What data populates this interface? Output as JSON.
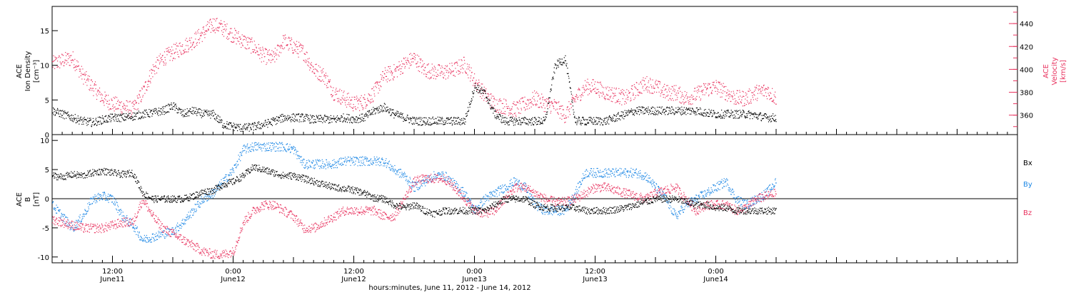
{
  "colors": {
    "black": "#000000",
    "pink": "#e8335f",
    "blue": "#1e88e5"
  },
  "chart_data": [
    {
      "type": "scatter",
      "panel": "top",
      "xlabel": "hours:minutes, June 11, 2012 - June 14, 2012",
      "x_range_hours": [
        0,
        96
      ],
      "x_ticks": [
        {
          "hour": 6,
          "label": "12:00",
          "sub": "June11"
        },
        {
          "hour": 18,
          "label": "0:00",
          "sub": "June12"
        },
        {
          "hour": 30,
          "label": "12:00",
          "sub": "June12"
        },
        {
          "hour": 42,
          "label": "0:00",
          "sub": "June13"
        },
        {
          "hour": 54,
          "label": "12:00",
          "sub": "June13"
        },
        {
          "hour": 66,
          "label": "0:00",
          "sub": "June14"
        }
      ],
      "left_axis": {
        "label_lines": [
          "ACE",
          "Ion Density",
          "[cm⁻³]"
        ],
        "ylim": [
          0,
          18.5
        ],
        "ticks": [
          0,
          5,
          10,
          15
        ]
      },
      "right_axis": {
        "label_lines": [
          "ACE",
          "Velocity",
          "[km/s]"
        ],
        "ylim": [
          343,
          455
        ],
        "ticks": [
          360,
          380,
          400,
          420,
          440
        ]
      },
      "series": [
        {
          "axis": "left",
          "color": "#000000",
          "x": [
            0,
            1,
            2,
            3,
            4,
            5,
            6,
            7,
            8,
            9,
            10,
            11,
            12,
            13,
            14,
            15,
            16,
            17,
            18,
            19,
            20,
            21,
            22,
            23,
            24,
            25,
            26,
            27,
            28,
            29,
            30,
            31,
            32,
            33,
            34,
            35,
            36,
            37,
            38,
            39,
            40,
            41,
            42,
            43,
            44,
            45,
            46,
            47,
            48,
            49,
            50,
            51,
            52,
            53,
            54,
            55,
            56,
            57,
            58,
            59,
            60,
            61,
            62,
            63,
            64,
            65,
            66,
            67,
            68,
            69,
            70,
            71,
            72
          ],
          "y": [
            3.5,
            3,
            2.5,
            2,
            1.8,
            2.2,
            2.5,
            2.5,
            2.7,
            3,
            3.2,
            3.5,
            4.2,
            3,
            3.5,
            3,
            3,
            1.5,
            1.2,
            1,
            1.2,
            1.5,
            2,
            2.5,
            2.5,
            2.5,
            2.2,
            2.3,
            2.2,
            2.5,
            2.3,
            2.5,
            3.5,
            4,
            3,
            2.5,
            2,
            2,
            2,
            2,
            2,
            2,
            7,
            6,
            3,
            2,
            2,
            2,
            2,
            2,
            10,
            11,
            2,
            2,
            2,
            2,
            2.5,
            3,
            3.5,
            3.5,
            3.5,
            3.5,
            3.5,
            3.5,
            3.5,
            3.2,
            3,
            3,
            3,
            3,
            2.8,
            2.5,
            2.5
          ]
        },
        {
          "axis": "right",
          "color": "#e8335f",
          "x": [
            0,
            1,
            2,
            3,
            4,
            5,
            6,
            7,
            8,
            9,
            10,
            11,
            12,
            13,
            14,
            15,
            16,
            17,
            18,
            19,
            20,
            21,
            22,
            23,
            24,
            25,
            26,
            27,
            28,
            29,
            30,
            31,
            32,
            33,
            34,
            35,
            36,
            37,
            38,
            39,
            40,
            41,
            42,
            43,
            44,
            45,
            46,
            47,
            48,
            49,
            50,
            51,
            52,
            53,
            54,
            55,
            56,
            57,
            58,
            59,
            60,
            61,
            62,
            63,
            64,
            65,
            66,
            67,
            68,
            69,
            70,
            71,
            72
          ],
          "y": [
            405,
            408,
            410,
            395,
            385,
            375,
            370,
            368,
            365,
            380,
            400,
            410,
            415,
            420,
            425,
            432,
            440,
            436,
            430,
            425,
            420,
            412,
            410,
            425,
            420,
            415,
            400,
            395,
            380,
            375,
            370,
            372,
            380,
            395,
            398,
            405,
            410,
            400,
            398,
            398,
            400,
            405,
            390,
            378,
            370,
            368,
            365,
            370,
            375,
            370,
            368,
            360,
            375,
            385,
            385,
            380,
            378,
            375,
            382,
            388,
            385,
            380,
            380,
            375,
            378,
            383,
            385,
            380,
            375,
            375,
            380,
            382,
            375
          ]
        }
      ]
    },
    {
      "type": "scatter",
      "panel": "bottom",
      "x_range_hours": [
        0,
        96
      ],
      "left_axis": {
        "label_lines": [
          "ACE",
          "B",
          "[nT]"
        ],
        "ylim": [
          -11,
          11
        ],
        "ticks": [
          -10,
          -5,
          0,
          5,
          10
        ]
      },
      "zero_line": true,
      "legend": [
        "Bx",
        "By",
        "Bz"
      ],
      "series": [
        {
          "name": "Bx",
          "color": "#000000",
          "x": [
            0,
            1,
            2,
            3,
            4,
            5,
            6,
            7,
            8,
            9,
            10,
            11,
            12,
            13,
            14,
            15,
            16,
            17,
            18,
            19,
            20,
            21,
            22,
            23,
            24,
            25,
            26,
            27,
            28,
            29,
            30,
            31,
            32,
            33,
            34,
            35,
            36,
            37,
            38,
            39,
            40,
            41,
            42,
            43,
            44,
            45,
            46,
            47,
            48,
            49,
            50,
            51,
            52,
            53,
            54,
            55,
            56,
            57,
            58,
            59,
            60,
            61,
            62,
            63,
            64,
            65,
            66,
            67,
            68,
            69,
            70,
            71,
            72
          ],
          "y": [
            4,
            3.8,
            4.2,
            4,
            4.5,
            4.8,
            4.5,
            4.2,
            4.5,
            1,
            0,
            0,
            0,
            0,
            0.5,
            1.2,
            1.5,
            2.5,
            3,
            4,
            5.5,
            5,
            4.5,
            4,
            4,
            3.5,
            3,
            2.5,
            2,
            1.8,
            1.5,
            1,
            0.2,
            0,
            -1,
            -1.5,
            -1,
            -2,
            -2.5,
            -2,
            -2,
            -2,
            -2,
            -2,
            -1,
            0,
            0,
            0,
            -1,
            -1.5,
            -1.5,
            -1.5,
            -1.5,
            -2,
            -2,
            -2,
            -1.8,
            -1.5,
            -1,
            -0.5,
            0,
            0,
            0,
            -0.5,
            -1,
            -1,
            -1.5,
            -1.5,
            -2,
            -2,
            -2,
            -2,
            -2
          ]
        },
        {
          "name": "By",
          "color": "#1e88e5",
          "x": [
            0,
            1,
            2,
            3,
            4,
            5,
            6,
            7,
            8,
            9,
            10,
            11,
            12,
            13,
            14,
            15,
            16,
            17,
            18,
            19,
            20,
            21,
            22,
            23,
            24,
            25,
            26,
            27,
            28,
            29,
            30,
            31,
            32,
            33,
            34,
            35,
            36,
            37,
            38,
            39,
            40,
            41,
            42,
            43,
            44,
            45,
            46,
            47,
            48,
            49,
            50,
            51,
            52,
            53,
            54,
            55,
            56,
            57,
            58,
            59,
            60,
            61,
            62,
            63,
            64,
            65,
            66,
            67,
            68,
            69,
            70,
            71,
            72
          ],
          "y": [
            -1,
            -3,
            -5,
            -3,
            0,
            0.5,
            0,
            -3,
            -4.5,
            -7,
            -6.5,
            -6,
            -5.5,
            -4,
            -2,
            0,
            1,
            3,
            5,
            8.5,
            9,
            9,
            9,
            9,
            8.5,
            6,
            6,
            6,
            6,
            6.5,
            6.5,
            6.5,
            6.5,
            6.5,
            5,
            4,
            2,
            3,
            4,
            4,
            2.5,
            1,
            -2,
            0,
            1,
            2,
            3,
            2,
            -1,
            -2,
            -2,
            -2,
            1,
            4.5,
            4.5,
            4.5,
            4.5,
            4.5,
            4.5,
            4,
            2,
            0,
            -3,
            -1,
            0,
            1,
            2,
            3,
            0,
            -1,
            0,
            1,
            3
          ]
        },
        {
          "name": "Bz",
          "color": "#e8335f",
          "x": [
            0,
            1,
            2,
            3,
            4,
            5,
            6,
            7,
            8,
            9,
            10,
            11,
            12,
            13,
            14,
            15,
            16,
            17,
            18,
            19,
            20,
            21,
            22,
            23,
            24,
            25,
            26,
            27,
            28,
            29,
            30,
            31,
            32,
            33,
            34,
            35,
            36,
            37,
            38,
            39,
            40,
            41,
            42,
            43,
            44,
            45,
            46,
            47,
            48,
            49,
            50,
            51,
            52,
            53,
            54,
            55,
            56,
            57,
            58,
            59,
            60,
            61,
            62,
            63,
            64,
            65,
            66,
            67,
            68,
            69,
            70,
            71,
            72
          ],
          "y": [
            -3.5,
            -4,
            -4.5,
            -5,
            -5,
            -5,
            -4.5,
            -4,
            -4,
            0,
            -3,
            -5,
            -6,
            -7,
            -8,
            -9,
            -9.5,
            -9.5,
            -9,
            -4,
            -2,
            -1,
            -1,
            -2,
            -3,
            -5,
            -5,
            -4,
            -3,
            -2,
            -2,
            -2,
            -2,
            -3,
            -3,
            0,
            3,
            3.5,
            3.5,
            3.5,
            2,
            0,
            -2,
            -2.5,
            -2,
            0,
            2,
            2,
            1,
            0,
            -0.5,
            -0.5,
            0,
            1,
            2,
            2,
            1.5,
            1,
            0.5,
            0,
            1,
            1.5,
            2,
            0,
            -2,
            -1,
            -1,
            -1,
            -2,
            -1.5,
            0,
            0.5,
            1
          ]
        }
      ]
    }
  ]
}
